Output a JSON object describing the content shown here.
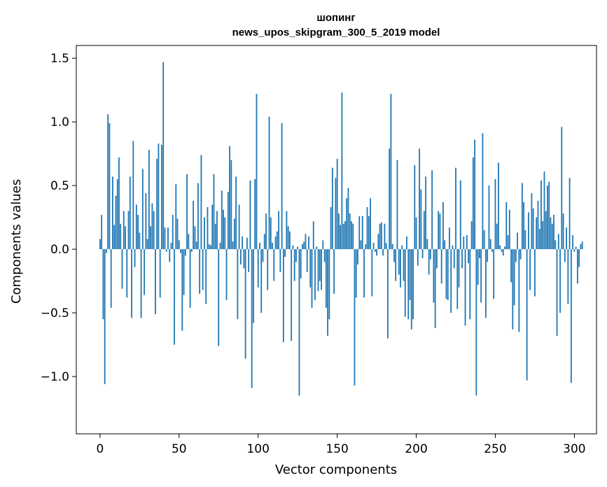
{
  "chart_data": {
    "type": "bar",
    "title": "шопинг",
    "subtitle": "news_upos_skipgram_300_5_2019 model",
    "xlabel": "Vector components",
    "ylabel": "Components values",
    "xlim": [
      -15,
      314
    ],
    "ylim": [
      -1.45,
      1.6
    ],
    "xticks": [
      0,
      50,
      100,
      150,
      200,
      250,
      300
    ],
    "yticks": [
      -1.0,
      -0.5,
      0.0,
      0.5,
      1.0,
      1.5
    ],
    "ytick_labels": [
      "−1.0",
      "−0.5",
      "0.0",
      "0.5",
      "1.0",
      "1.5"
    ],
    "grid": false,
    "bar_color": "#1f77b4",
    "values": [
      0.08,
      0.27,
      -0.55,
      -1.06,
      -0.03,
      1.06,
      0.99,
      -0.46,
      0.57,
      0.19,
      0.42,
      0.55,
      0.72,
      0.2,
      -0.31,
      0.3,
      0.18,
      -0.38,
      0.3,
      0.57,
      -0.54,
      0.85,
      -0.14,
      0.35,
      0.27,
      0.13,
      -0.54,
      0.63,
      -0.36,
      0.44,
      0.08,
      0.78,
      0.18,
      0.36,
      0.3,
      -0.51,
      0.71,
      0.83,
      -0.38,
      0.82,
      1.47,
      0.17,
      -0.02,
      0.17,
      -0.1,
      0.05,
      0.27,
      -0.75,
      0.51,
      0.24,
      0.07,
      -0.03,
      -0.64,
      -0.36,
      -0.05,
      0.59,
      0.12,
      -0.46,
      -0.02,
      0.38,
      0.18,
      0.06,
      0.52,
      -0.35,
      0.74,
      -0.32,
      0.25,
      -0.43,
      0.33,
      0.04,
      0.03,
      0.35,
      0.59,
      0.2,
      0.3,
      -0.76,
      0.05,
      0.46,
      0.31,
      0.25,
      -0.4,
      0.45,
      0.81,
      0.7,
      0.06,
      0.24,
      0.57,
      -0.55,
      0.35,
      -0.12,
      0.1,
      -0.15,
      -0.86,
      0.09,
      -0.18,
      0.54,
      -1.09,
      -0.58,
      0.55,
      1.22,
      -0.3,
      0.05,
      -0.5,
      -0.1,
      0.12,
      0.28,
      -0.32,
      1.04,
      0.25,
      0.05,
      -0.25,
      0.1,
      0.14,
      0.3,
      -0.18,
      0.99,
      -0.73,
      -0.06,
      0.3,
      0.18,
      0.14,
      -0.72,
      0.03,
      -0.25,
      -0.1,
      0.02,
      -1.15,
      -0.23,
      0.04,
      0.06,
      0.12,
      -0.18,
      0.1,
      -0.3,
      -0.46,
      0.22,
      -0.4,
      0.02,
      -0.33,
      -0.25,
      -0.32,
      0.07,
      -0.1,
      -0.46,
      -0.68,
      -0.55,
      0.33,
      0.64,
      -0.35,
      0.56,
      0.71,
      0.28,
      0.19,
      1.23,
      0.2,
      0.22,
      0.4,
      0.48,
      0.28,
      0.22,
      0.2,
      -1.07,
      -0.38,
      -0.12,
      0.26,
      0.07,
      0.26,
      -0.38,
      0.04,
      0.33,
      0.26,
      0.4,
      -0.37,
      0.05,
      -0.02,
      -0.05,
      0.12,
      0.2,
      0.21,
      -0.05,
      0.2,
      0.05,
      -0.7,
      0.79,
      1.22,
      0.04,
      -0.1,
      -0.25,
      0.7,
      -0.2,
      -0.3,
      0.03,
      -0.25,
      -0.53,
      0.1,
      -0.55,
      -0.4,
      -0.63,
      -0.55,
      0.66,
      0.25,
      -0.13,
      0.79,
      0.47,
      -0.07,
      0.3,
      0.57,
      0.08,
      -0.2,
      -0.08,
      0.62,
      -0.42,
      -0.62,
      -0.15,
      0.3,
      0.28,
      -0.27,
      0.37,
      0.07,
      -0.39,
      -0.4,
      0.17,
      -0.5,
      0.03,
      -0.15,
      0.64,
      -0.47,
      -0.3,
      0.54,
      -0.15,
      0.1,
      -0.6,
      0.11,
      -0.11,
      -0.55,
      0.22,
      0.72,
      0.86,
      -1.15,
      -0.28,
      -0.07,
      -0.42,
      0.91,
      0.15,
      -0.54,
      -0.1,
      0.5,
      0.08,
      -0.02,
      -0.39,
      0.55,
      0.2,
      0.68,
      0.03,
      -0.02,
      -0.05,
      0.02,
      0.37,
      0.11,
      0.31,
      -0.26,
      -0.63,
      -0.44,
      -0.1,
      0.13,
      -0.65,
      -0.08,
      0.52,
      0.37,
      0.15,
      -1.03,
      0.29,
      -0.32,
      0.44,
      0.32,
      -0.37,
      0.25,
      0.38,
      0.16,
      0.54,
      0.22,
      0.61,
      0.3,
      0.5,
      0.53,
      0.25,
      0.2,
      0.27,
      0.07,
      -0.68,
      0.12,
      -0.5,
      0.96,
      0.28,
      -0.1,
      0.17,
      -0.43,
      0.56,
      -1.05,
      0.11,
      -0.02,
      0.02,
      -0.27,
      -0.14,
      0.04,
      0.06
    ]
  }
}
